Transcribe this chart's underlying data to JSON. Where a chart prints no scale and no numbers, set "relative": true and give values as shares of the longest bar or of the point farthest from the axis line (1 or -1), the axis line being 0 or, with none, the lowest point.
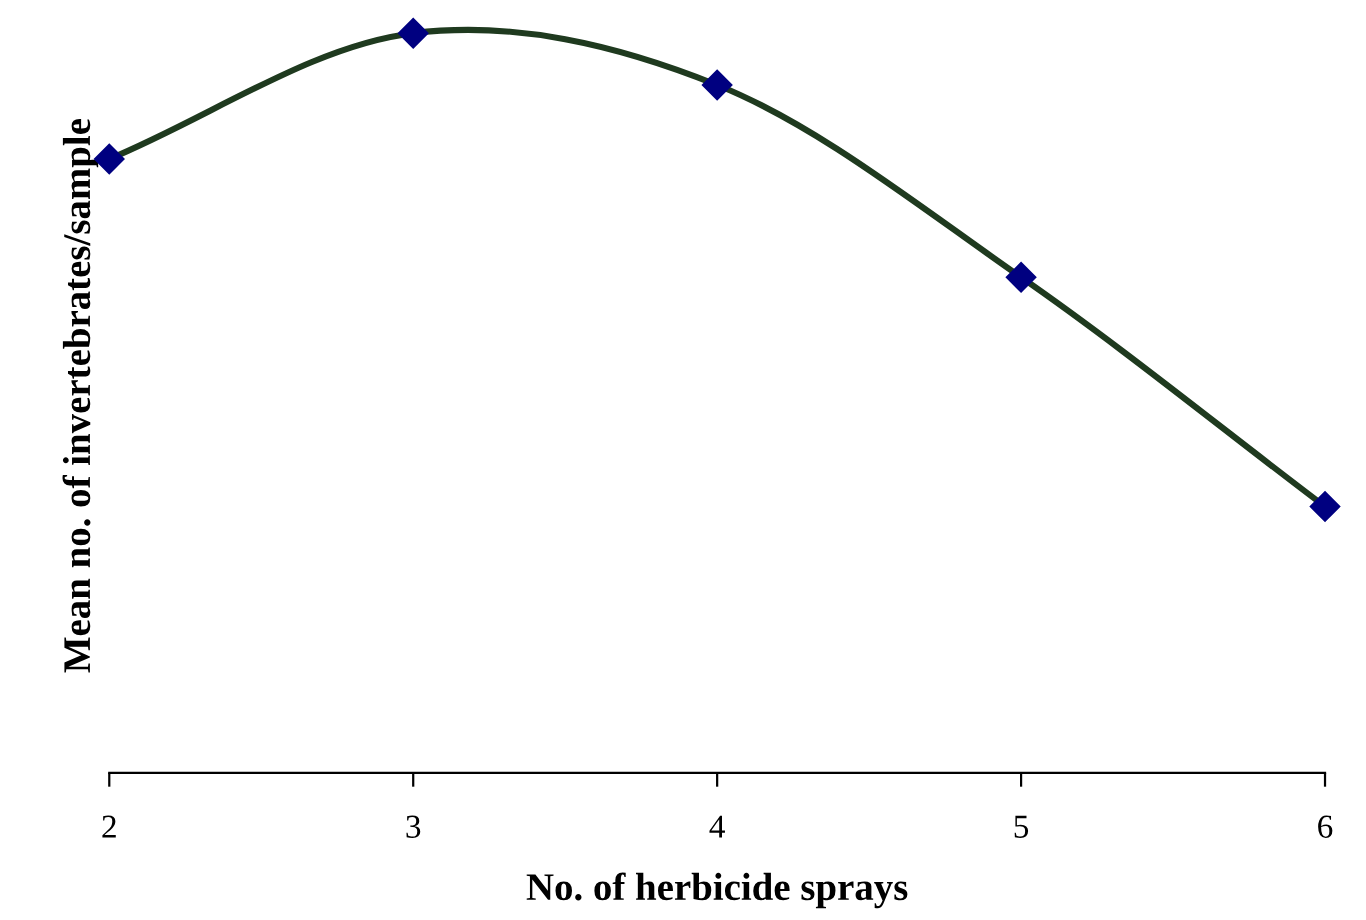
{
  "chart_data": {
    "type": "line",
    "xlabel": "No. of herbicide sprays",
    "ylabel": "Mean no. of invertebrates/sample",
    "x": [
      2,
      3,
      4,
      5,
      6
    ],
    "xlim": [
      2,
      6
    ],
    "xticks": [
      2,
      3,
      4,
      5,
      6
    ],
    "relative": true,
    "series": [
      {
        "color": "#1f3a1f",
        "values": [
          0.83,
          1,
          0.93,
          0.67,
          0.36
        ]
      }
    ],
    "marker": "diamond",
    "line_style": "solid",
    "grid": false,
    "legend": false
  }
}
